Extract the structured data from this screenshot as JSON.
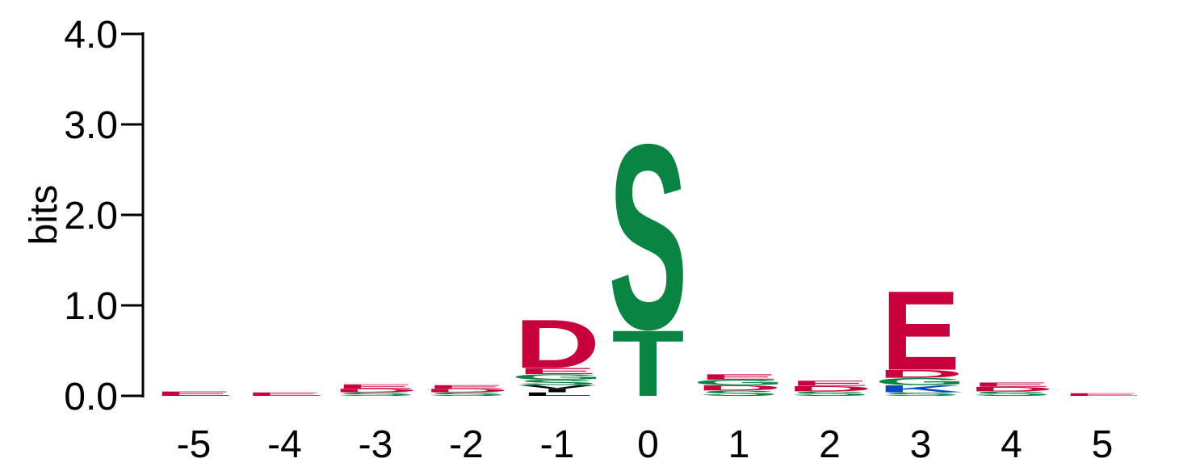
{
  "colors": {
    "acidic": "#C8003C",
    "polar": "#0A8442",
    "basic": "#0A46C8",
    "hydrophobic": "#000000"
  },
  "chart_data": {
    "type": "sequence-logo",
    "ylabel": "bits",
    "ylim": [
      0,
      4
    ],
    "yticks": [
      "0.0",
      "1.0",
      "2.0",
      "3.0",
      "4.0"
    ],
    "positions": [
      {
        "label": "-5",
        "stack": [
          {
            "letter": "E",
            "bits": 0.05
          }
        ]
      },
      {
        "label": "-4",
        "stack": [
          {
            "letter": "E",
            "bits": 0.04
          }
        ]
      },
      {
        "label": "-3",
        "stack": [
          {
            "letter": "S",
            "bits": 0.04
          },
          {
            "letter": "D",
            "bits": 0.04
          },
          {
            "letter": "E",
            "bits": 0.05
          }
        ]
      },
      {
        "label": "-2",
        "stack": [
          {
            "letter": "S",
            "bits": 0.04
          },
          {
            "letter": "D",
            "bits": 0.04
          },
          {
            "letter": "E",
            "bits": 0.04
          }
        ]
      },
      {
        "label": "-1",
        "stack": [
          {
            "letter": "L",
            "bits": 0.04
          },
          {
            "letter": "I",
            "bits": 0.04
          },
          {
            "letter": "V",
            "bits": 0.04
          },
          {
            "letter": "S",
            "bits": 0.06
          },
          {
            "letter": "G",
            "bits": 0.06
          },
          {
            "letter": "E",
            "bits": 0.07
          },
          {
            "letter": "D",
            "bits": 0.55
          }
        ]
      },
      {
        "label": "0",
        "stack": [
          {
            "letter": "T",
            "bits": 0.75
          },
          {
            "letter": "S",
            "bits": 2.1
          }
        ]
      },
      {
        "label": "1",
        "stack": [
          {
            "letter": "S",
            "bits": 0.06
          },
          {
            "letter": "D",
            "bits": 0.06
          },
          {
            "letter": "G",
            "bits": 0.06
          },
          {
            "letter": "E",
            "bits": 0.06
          }
        ]
      },
      {
        "label": "2",
        "stack": [
          {
            "letter": "S",
            "bits": 0.05
          },
          {
            "letter": "D",
            "bits": 0.06
          },
          {
            "letter": "E",
            "bits": 0.06
          }
        ]
      },
      {
        "label": "3",
        "stack": [
          {
            "letter": "S",
            "bits": 0.04
          },
          {
            "letter": "K",
            "bits": 0.08
          },
          {
            "letter": "G",
            "bits": 0.08
          },
          {
            "letter": "D",
            "bits": 0.09
          },
          {
            "letter": "E",
            "bits": 0.9
          }
        ]
      },
      {
        "label": "4",
        "stack": [
          {
            "letter": "S",
            "bits": 0.05
          },
          {
            "letter": "D",
            "bits": 0.05
          },
          {
            "letter": "E",
            "bits": 0.05
          }
        ]
      },
      {
        "label": "5",
        "stack": [
          {
            "letter": "E",
            "bits": 0.03
          }
        ]
      }
    ]
  }
}
